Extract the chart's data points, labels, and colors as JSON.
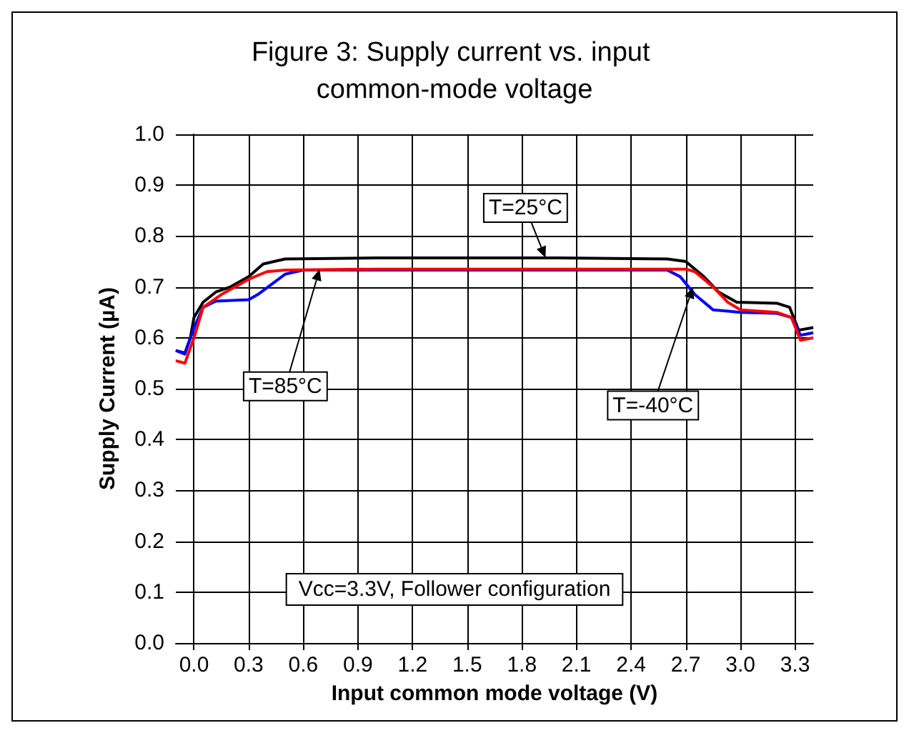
{
  "chart_data": {
    "type": "line",
    "title": "Figure 3: Supply current vs. input common-mode voltage",
    "xlabel": "Input common mode voltage (V)",
    "ylabel": "Supply Current (µA)",
    "series": [
      {
        "color": "#000000",
        "x": [
          -0.1,
          -0.05,
          -0.02,
          0.0,
          0.05,
          0.12,
          0.2,
          0.3,
          0.38,
          0.5,
          1.0,
          2.0,
          2.6,
          2.7,
          2.8,
          2.88,
          2.98,
          3.2,
          3.27,
          3.32,
          3.4
        ],
        "values": [
          0.575,
          0.57,
          0.6,
          0.64,
          0.67,
          0.69,
          0.7,
          0.72,
          0.745,
          0.755,
          0.757,
          0.757,
          0.755,
          0.75,
          0.72,
          0.69,
          0.67,
          0.668,
          0.66,
          0.615,
          0.62
        ]
      },
      {
        "color": "#0000ff",
        "x": [
          -0.1,
          -0.05,
          0.0,
          0.05,
          0.12,
          0.3,
          0.35,
          0.5,
          0.6,
          1.0,
          2.0,
          2.6,
          2.67,
          2.75,
          2.85,
          3.0,
          3.2,
          3.28,
          3.33,
          3.4
        ],
        "values": [
          0.575,
          0.568,
          0.62,
          0.66,
          0.672,
          0.675,
          0.685,
          0.725,
          0.733,
          0.733,
          0.733,
          0.733,
          0.72,
          0.685,
          0.655,
          0.65,
          0.648,
          0.64,
          0.605,
          0.61
        ]
      },
      {
        "color": "#ff0000",
        "x": [
          -0.1,
          -0.05,
          0.0,
          0.05,
          0.15,
          0.3,
          0.4,
          0.5,
          1.0,
          2.0,
          2.7,
          2.75,
          2.85,
          2.93,
          3.0,
          3.2,
          3.28,
          3.33,
          3.4
        ],
        "values": [
          0.555,
          0.55,
          0.6,
          0.66,
          0.685,
          0.715,
          0.73,
          0.733,
          0.735,
          0.735,
          0.735,
          0.73,
          0.7,
          0.67,
          0.655,
          0.65,
          0.64,
          0.595,
          0.6
        ]
      }
    ],
    "xlim": [
      -0.1,
      3.4
    ],
    "xticks": [
      {
        "value": 0,
        "label": "0.0"
      },
      {
        "value": 0.3,
        "label": "0.3"
      },
      {
        "value": 0.6,
        "label": "0.6"
      },
      {
        "value": 0.9,
        "label": "0.9"
      },
      {
        "value": 1.2,
        "label": "1.2"
      },
      {
        "value": 1.5,
        "label": "1.5"
      },
      {
        "value": 1.8,
        "label": "1.8"
      },
      {
        "value": 2.1,
        "label": "2.1"
      },
      {
        "value": 2.4,
        "label": "2.4"
      },
      {
        "value": 2.7,
        "label": "2.7"
      },
      {
        "value": 3.0,
        "label": "3.0"
      },
      {
        "value": 3.3,
        "label": "3.3"
      }
    ],
    "ylim": [
      0,
      1
    ],
    "yticks": [
      {
        "value": 0,
        "label": "0.0"
      },
      {
        "value": 0.1,
        "label": "0.1"
      },
      {
        "value": 0.2,
        "label": "0.2"
      },
      {
        "value": 0.3,
        "label": "0.3"
      },
      {
        "value": 0.4,
        "label": "0.4"
      },
      {
        "value": 0.5,
        "label": "0.5"
      },
      {
        "value": 0.6,
        "label": "0.6"
      },
      {
        "value": 0.7,
        "label": "0.7"
      },
      {
        "value": 0.8,
        "label": "0.8"
      },
      {
        "value": 0.9,
        "label": "0.9"
      },
      {
        "value": 1,
        "label": "1.0"
      }
    ],
    "annotations": [
      {
        "text": "T=25°C",
        "x": 1.93,
        "y": 0.757
      },
      {
        "text": "T=85°C",
        "x": 0.69,
        "y": 0.735
      },
      {
        "text": "T=-40°C",
        "x": 2.74,
        "y": 0.7
      },
      "Vcc=3.3V, Follower configuration"
    ],
    "grid": true,
    "marker": "none",
    "line_style": "solid"
  }
}
